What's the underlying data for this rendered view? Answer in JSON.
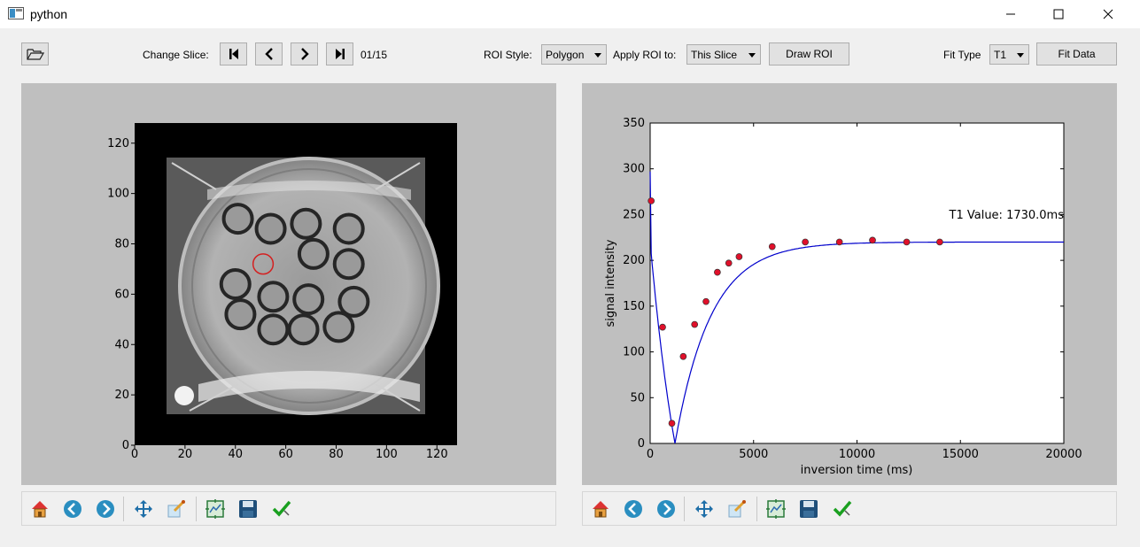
{
  "window": {
    "title": "python"
  },
  "toolbar": {
    "change_slice_label": "Change Slice:",
    "slice_counter": "01/15",
    "roi_style_label": "ROI Style:",
    "roi_style_value": "Polygon",
    "apply_roi_label": "Apply ROI to:",
    "apply_roi_value": "This Slice",
    "draw_roi_label": "Draw ROI",
    "fit_type_label": "Fit Type",
    "fit_type_value": "T1",
    "fit_data_label": "Fit Data"
  },
  "image_panel": {
    "x_ticks": [
      "0",
      "20",
      "40",
      "60",
      "80",
      "100",
      "120"
    ],
    "y_ticks": [
      "0",
      "20",
      "40",
      "60",
      "80",
      "100",
      "120"
    ],
    "roi": {
      "x": 51,
      "y": 72,
      "r": 4
    }
  },
  "chart_data": {
    "type": "scatter",
    "xlabel": "inversion time (ms)",
    "ylabel": "signal intensity",
    "xlim": [
      0,
      20000
    ],
    "ylim": [
      0,
      350
    ],
    "x_ticks": [
      "0",
      "5000",
      "10000",
      "15000",
      "20000"
    ],
    "y_ticks": [
      "0",
      "50",
      "100",
      "150",
      "200",
      "250",
      "300",
      "350"
    ],
    "annotation": "T1 Value: 1730.0ms",
    "series": [
      {
        "kind": "points",
        "color": "#e0102a",
        "x": [
          50,
          600,
          1050,
          1600,
          2150,
          2700,
          3250,
          3800,
          4300,
          5900,
          7500,
          9150,
          10750,
          12400,
          14000
        ],
        "y": [
          265,
          127,
          22,
          95,
          130,
          155,
          187,
          197,
          204,
          215,
          220,
          220,
          222,
          220,
          220
        ]
      },
      {
        "kind": "fit",
        "color": "#0000cc",
        "t1": 1730,
        "amplitude": 220
      }
    ]
  },
  "navbar": {
    "tools": [
      "home-icon",
      "back-icon",
      "forward-icon",
      "pan-icon",
      "zoom-icon",
      "subplots-icon",
      "save-icon",
      "edit-check-icon"
    ]
  },
  "colors": {
    "panel": "#bfbfbf",
    "roi": "#d42020",
    "fit_line": "#0000cc",
    "points": "#e0102a"
  }
}
